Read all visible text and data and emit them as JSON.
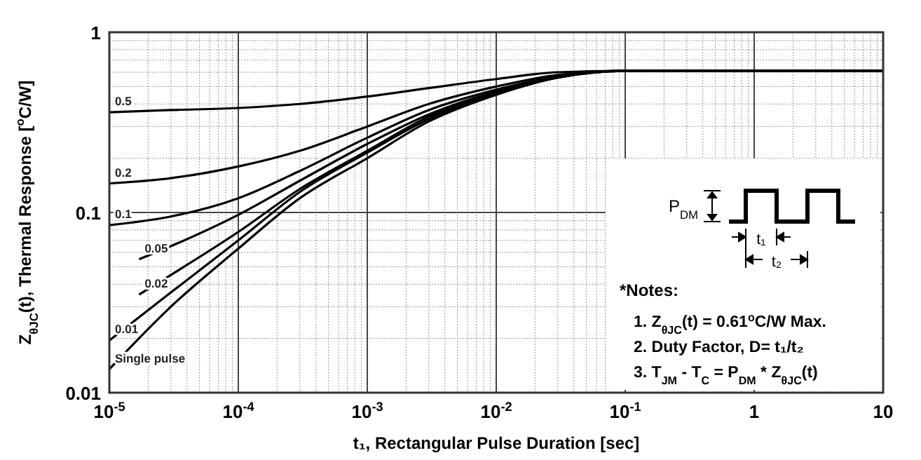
{
  "chart_data": {
    "type": "line",
    "xlabel": "t₁, Rectangular Pulse Duration [sec]",
    "ylabel": "Z$_{θJC}$(t), Thermal Response [$^{o}$C/W]",
    "log": "xy",
    "grid": true,
    "legend": false,
    "marker": "none",
    "line_style": "solid",
    "xlim": [
      1e-05,
      10
    ],
    "ylim": [
      0.01,
      1
    ],
    "xticks": [
      {
        "value": 1e-05,
        "label": "10$^{-5}$"
      },
      {
        "value": 0.0001,
        "label": "10$^{-4}$"
      },
      {
        "value": 0.001,
        "label": "10$^{-3}$"
      },
      {
        "value": 0.01,
        "label": "10$^{-2}$"
      },
      {
        "value": 0.1,
        "label": "10$^{-1}$"
      },
      1,
      10
    ],
    "yticks": [
      0.01,
      0.1,
      1
    ],
    "x": [
      1e-05,
      3e-05,
      0.0001,
      0.0003,
      0.001,
      0.003,
      0.01,
      0.03,
      0.1,
      1,
      10
    ],
    "series": [
      {
        "name": "0.5",
        "color": "#000000",
        "values": [
          0.36,
          0.37,
          0.38,
          0.4,
          0.44,
          0.49,
          0.55,
          0.6,
          0.61,
          0.61,
          0.61
        ]
      },
      {
        "name": "0.2",
        "color": "#000000",
        "values": [
          0.145,
          0.155,
          0.18,
          0.22,
          0.3,
          0.4,
          0.5,
          0.58,
          0.61,
          0.61,
          0.61
        ]
      },
      {
        "name": "0.1",
        "color": "#000000",
        "values": [
          0.085,
          0.095,
          0.12,
          0.17,
          0.26,
          0.37,
          0.48,
          0.57,
          0.61,
          0.61,
          0.61
        ]
      },
      {
        "name": "0.05",
        "color": "#000000",
        "x": [
          1.7e-05,
          3e-05,
          0.0001,
          0.0003,
          0.001,
          0.003,
          0.01,
          0.03,
          0.1,
          1,
          10
        ],
        "values": [
          0.055,
          0.065,
          0.097,
          0.15,
          0.24,
          0.35,
          0.47,
          0.57,
          0.61,
          0.61,
          0.61
        ]
      },
      {
        "name": "0.02",
        "color": "#000000",
        "x": [
          1.7e-05,
          3e-05,
          0.0001,
          0.0003,
          0.001,
          0.003,
          0.01,
          0.03,
          0.1,
          1,
          10
        ],
        "values": [
          0.035,
          0.045,
          0.078,
          0.135,
          0.22,
          0.34,
          0.46,
          0.57,
          0.61,
          0.61,
          0.61
        ]
      },
      {
        "name": "0.01",
        "color": "#000000",
        "values": [
          0.0195,
          0.036,
          0.07,
          0.13,
          0.215,
          0.33,
          0.455,
          0.56,
          0.61,
          0.61,
          0.61
        ]
      },
      {
        "name": "Single pulse",
        "color": "#000000",
        "values": [
          0.0135,
          0.03,
          0.063,
          0.12,
          0.2,
          0.32,
          0.45,
          0.56,
          0.61,
          0.61,
          0.61
        ]
      }
    ],
    "annotations": [
      "P$_{DM}$",
      "t₁",
      "t₂",
      "*Notes:",
      "1. Z$_{θJC}$(t) = 0.61$^{o}$C/W Max.",
      "2. Duty Factor, D= t₁/t₂",
      "3. T$_{JM}$ - T$_{C}$ = P$_{DM}$ * Z$_{θJC}$(t)"
    ]
  }
}
